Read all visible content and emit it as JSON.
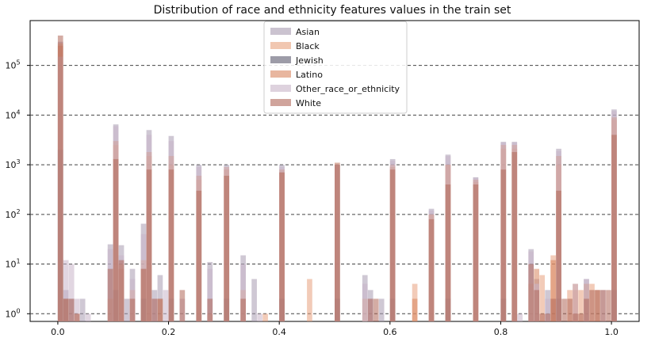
{
  "chart_data": {
    "type": "bar",
    "title": "Distribution of race and ethnicity features values in the train set",
    "xlabel": "",
    "ylabel": "",
    "xlim": [
      -0.05,
      1.05
    ],
    "ylim": [
      0.7,
      800000
    ],
    "yscale": "log",
    "x_ticks": [
      {
        "value": 0.0,
        "label": "0.0"
      },
      {
        "value": 0.2,
        "label": "0.2"
      },
      {
        "value": 0.4,
        "label": "0.4"
      },
      {
        "value": 0.6,
        "label": "0.6"
      },
      {
        "value": 0.8,
        "label": "0.8"
      },
      {
        "value": 1.0,
        "label": "1.0"
      }
    ],
    "y_ticks": [
      {
        "value": 1,
        "base": "10",
        "exp": "0"
      },
      {
        "value": 10,
        "base": "10",
        "exp": "1"
      },
      {
        "value": 100,
        "base": "10",
        "exp": "2"
      },
      {
        "value": 1000,
        "base": "10",
        "exp": "3"
      },
      {
        "value": 10000,
        "base": "10",
        "exp": "4"
      },
      {
        "value": 100000,
        "base": "10",
        "exp": "5"
      }
    ],
    "grid": {
      "y": true,
      "style": "dashed"
    },
    "legend_position": "top-center",
    "bin_width": 0.01,
    "series": [
      {
        "name": "Asian",
        "color": "#a89bb0",
        "bins": [
          [
            0.0,
            300000
          ],
          [
            0.01,
            3
          ],
          [
            0.02,
            2
          ],
          [
            0.04,
            2
          ],
          [
            0.09,
            25
          ],
          [
            0.1,
            6500
          ],
          [
            0.11,
            24
          ],
          [
            0.12,
            2
          ],
          [
            0.13,
            8
          ],
          [
            0.15,
            65
          ],
          [
            0.16,
            5000
          ],
          [
            0.17,
            3
          ],
          [
            0.18,
            6
          ],
          [
            0.2,
            3800
          ],
          [
            0.25,
            1000
          ],
          [
            0.27,
            11
          ],
          [
            0.3,
            1000
          ],
          [
            0.33,
            15
          ],
          [
            0.35,
            5
          ],
          [
            0.4,
            1000
          ],
          [
            0.5,
            1100
          ],
          [
            0.55,
            6
          ],
          [
            0.56,
            3
          ],
          [
            0.58,
            2
          ],
          [
            0.6,
            1300
          ],
          [
            0.67,
            130
          ],
          [
            0.7,
            1600
          ],
          [
            0.75,
            560
          ],
          [
            0.8,
            2900
          ],
          [
            0.82,
            2900
          ],
          [
            0.85,
            20
          ],
          [
            0.86,
            5
          ],
          [
            0.88,
            3
          ],
          [
            0.9,
            2100
          ],
          [
            0.95,
            5
          ],
          [
            1.0,
            13000
          ]
        ]
      },
      {
        "name": "Black",
        "color": "#e8a17d",
        "bins": [
          [
            0.0,
            280000
          ],
          [
            0.01,
            2
          ],
          [
            0.03,
            1
          ],
          [
            0.09,
            2
          ],
          [
            0.1,
            2500
          ],
          [
            0.11,
            10
          ],
          [
            0.13,
            3
          ],
          [
            0.15,
            12
          ],
          [
            0.16,
            1500
          ],
          [
            0.18,
            2
          ],
          [
            0.2,
            1000
          ],
          [
            0.25,
            500
          ],
          [
            0.27,
            1
          ],
          [
            0.3,
            900
          ],
          [
            0.33,
            3
          ],
          [
            0.37,
            1
          ],
          [
            0.4,
            700
          ],
          [
            0.45,
            5
          ],
          [
            0.5,
            1100
          ],
          [
            0.55,
            2
          ],
          [
            0.6,
            1000
          ],
          [
            0.64,
            4
          ],
          [
            0.67,
            100
          ],
          [
            0.7,
            1000
          ],
          [
            0.75,
            450
          ],
          [
            0.8,
            2100
          ],
          [
            0.82,
            2100
          ],
          [
            0.85,
            4
          ],
          [
            0.87,
            6
          ],
          [
            0.89,
            15
          ],
          [
            0.9,
            1000
          ],
          [
            0.92,
            3
          ],
          [
            0.93,
            3
          ],
          [
            0.94,
            3
          ],
          [
            0.96,
            4
          ],
          [
            1.0,
            8000
          ]
        ]
      },
      {
        "name": "Jewish",
        "color": "#5c5a6e",
        "bins": [
          [
            0.0,
            2000
          ],
          [
            0.01,
            2
          ],
          [
            0.1,
            3
          ],
          [
            0.15,
            2
          ],
          [
            0.2,
            2
          ],
          [
            0.3,
            2
          ],
          [
            0.4,
            2
          ],
          [
            0.5,
            2
          ],
          [
            0.6,
            2
          ],
          [
            0.7,
            2
          ],
          [
            0.8,
            2
          ],
          [
            0.9,
            2
          ],
          [
            1.0,
            3
          ]
        ]
      },
      {
        "name": "Latino",
        "color": "#d9865f",
        "bins": [
          [
            0.0,
            250000
          ],
          [
            0.01,
            2
          ],
          [
            0.1,
            3000
          ],
          [
            0.11,
            8
          ],
          [
            0.15,
            8
          ],
          [
            0.16,
            1800
          ],
          [
            0.2,
            1500
          ],
          [
            0.25,
            600
          ],
          [
            0.3,
            800
          ],
          [
            0.4,
            800
          ],
          [
            0.5,
            1000
          ],
          [
            0.6,
            900
          ],
          [
            0.64,
            2
          ],
          [
            0.67,
            100
          ],
          [
            0.7,
            1000
          ],
          [
            0.75,
            500
          ],
          [
            0.8,
            2500
          ],
          [
            0.82,
            2500
          ],
          [
            0.86,
            8
          ],
          [
            0.89,
            12
          ],
          [
            0.9,
            1500
          ],
          [
            0.93,
            4
          ],
          [
            0.95,
            4
          ],
          [
            0.97,
            3
          ],
          [
            1.0,
            9000
          ]
        ]
      },
      {
        "name": "Other_race_or_ethnicity",
        "color": "#c8b4c8",
        "bins": [
          [
            0.0,
            150000
          ],
          [
            0.01,
            12
          ],
          [
            0.02,
            10
          ],
          [
            0.03,
            2
          ],
          [
            0.05,
            1
          ],
          [
            0.09,
            20
          ],
          [
            0.1,
            6000
          ],
          [
            0.11,
            15
          ],
          [
            0.13,
            5
          ],
          [
            0.15,
            40
          ],
          [
            0.16,
            4000
          ],
          [
            0.17,
            2
          ],
          [
            0.19,
            3
          ],
          [
            0.2,
            3000
          ],
          [
            0.22,
            2
          ],
          [
            0.25,
            900
          ],
          [
            0.27,
            8
          ],
          [
            0.3,
            900
          ],
          [
            0.33,
            10
          ],
          [
            0.36,
            1
          ],
          [
            0.4,
            900
          ],
          [
            0.5,
            1000
          ],
          [
            0.55,
            4
          ],
          [
            0.56,
            2
          ],
          [
            0.6,
            1200
          ],
          [
            0.67,
            120
          ],
          [
            0.7,
            1500
          ],
          [
            0.75,
            550
          ],
          [
            0.8,
            2800
          ],
          [
            0.82,
            2800
          ],
          [
            0.83,
            1
          ],
          [
            0.85,
            18
          ],
          [
            0.86,
            4
          ],
          [
            0.88,
            2
          ],
          [
            0.9,
            1900
          ],
          [
            0.93,
            4
          ],
          [
            0.95,
            5
          ],
          [
            0.98,
            3
          ],
          [
            1.0,
            12000
          ]
        ]
      },
      {
        "name": "White",
        "color": "#b0675a",
        "bins": [
          [
            0.0,
            400000
          ],
          [
            0.01,
            2
          ],
          [
            0.02,
            2
          ],
          [
            0.03,
            1
          ],
          [
            0.09,
            8
          ],
          [
            0.1,
            1300
          ],
          [
            0.11,
            12
          ],
          [
            0.13,
            2
          ],
          [
            0.15,
            8
          ],
          [
            0.16,
            800
          ],
          [
            0.17,
            2
          ],
          [
            0.18,
            2
          ],
          [
            0.2,
            800
          ],
          [
            0.22,
            3
          ],
          [
            0.25,
            300
          ],
          [
            0.27,
            2
          ],
          [
            0.3,
            600
          ],
          [
            0.33,
            2
          ],
          [
            0.4,
            700
          ],
          [
            0.5,
            1000
          ],
          [
            0.56,
            2
          ],
          [
            0.57,
            2
          ],
          [
            0.6,
            800
          ],
          [
            0.67,
            80
          ],
          [
            0.7,
            400
          ],
          [
            0.75,
            400
          ],
          [
            0.8,
            800
          ],
          [
            0.82,
            1800
          ],
          [
            0.85,
            10
          ],
          [
            0.86,
            3
          ],
          [
            0.87,
            1
          ],
          [
            0.88,
            1
          ],
          [
            0.89,
            2
          ],
          [
            0.9,
            300
          ],
          [
            0.91,
            2
          ],
          [
            0.92,
            2
          ],
          [
            0.93,
            1
          ],
          [
            0.94,
            1
          ],
          [
            0.95,
            2
          ],
          [
            0.96,
            3
          ],
          [
            0.97,
            3
          ],
          [
            0.98,
            3
          ],
          [
            0.99,
            3
          ],
          [
            1.0,
            4000
          ]
        ]
      }
    ]
  }
}
